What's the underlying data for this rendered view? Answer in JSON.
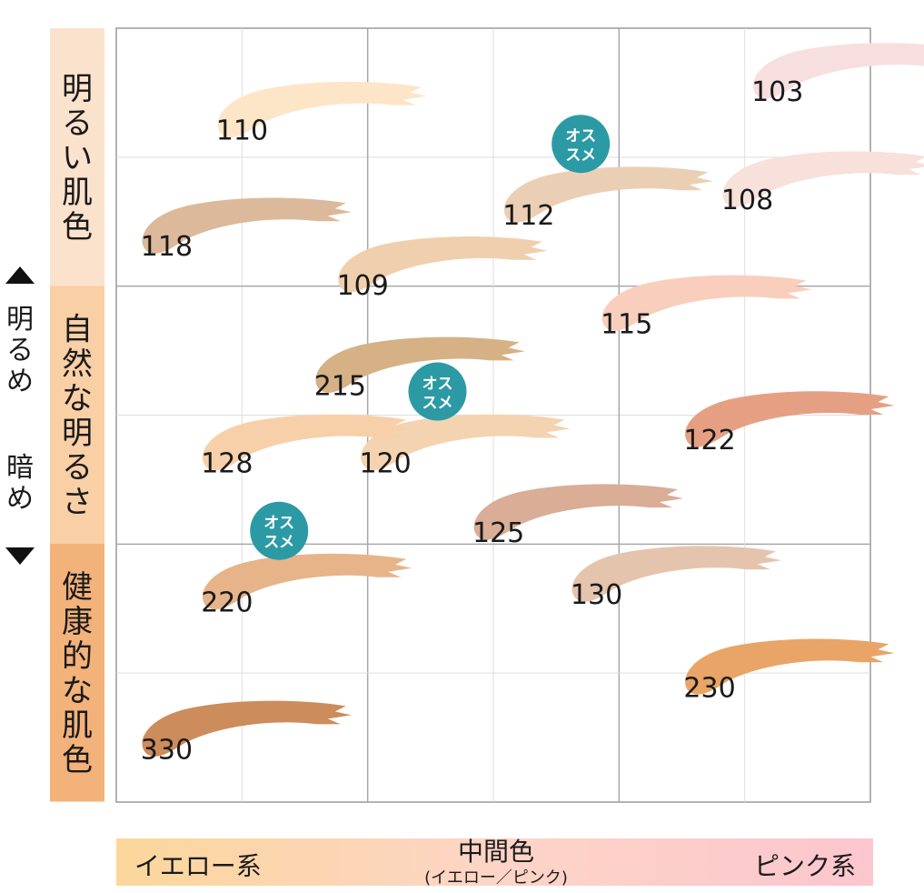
{
  "chart_data": {
    "type": "scatter",
    "title": "",
    "x_axis": {
      "labels": [
        "イエロー系",
        "中間色",
        "ピンク系"
      ],
      "middle_sub": "(イエロー／ピンク)",
      "gradient_colors": [
        "#fbd79b",
        "#fdd5c6",
        "#fcc6cf"
      ]
    },
    "y_axis": {
      "up_label": "明るめ",
      "down_label": "暗め",
      "bands": [
        {
          "label": "明るい肌色",
          "color": "#fbe2cd"
        },
        {
          "label": "自然な明るさ",
          "color": "#f9cfa5"
        },
        {
          "label": "健康的な肌色",
          "color": "#f2b27a"
        }
      ]
    },
    "recommend_label": [
      "オス",
      "スメ"
    ],
    "recommend_color": "#2c9aa5",
    "points": [
      {
        "shade": "103",
        "x": 0.97,
        "y": 0.04,
        "color": "#f8dfdf",
        "recommended": false
      },
      {
        "shade": "110",
        "x": 0.26,
        "y": 0.09,
        "color": "#fde5c8",
        "recommended": false
      },
      {
        "shade": "108",
        "x": 0.93,
        "y": 0.18,
        "color": "#f8e0db",
        "recommended": false
      },
      {
        "shade": "112",
        "x": 0.64,
        "y": 0.2,
        "color": "#ebcfb5",
        "recommended": true
      },
      {
        "shade": "118",
        "x": 0.16,
        "y": 0.24,
        "color": "#dcb99a",
        "recommended": false
      },
      {
        "shade": "109",
        "x": 0.42,
        "y": 0.29,
        "color": "#efcfae",
        "recommended": false
      },
      {
        "shade": "115",
        "x": 0.77,
        "y": 0.34,
        "color": "#f9cebd",
        "recommended": false
      },
      {
        "shade": "215",
        "x": 0.39,
        "y": 0.42,
        "color": "#d6b186",
        "recommended": false
      },
      {
        "shade": "122",
        "x": 0.88,
        "y": 0.49,
        "color": "#e5a084",
        "recommended": false
      },
      {
        "shade": "120",
        "x": 0.45,
        "y": 0.52,
        "color": "#f4d3b0",
        "recommended": true
      },
      {
        "shade": "128",
        "x": 0.24,
        "y": 0.52,
        "color": "#f7d0a9",
        "recommended": false
      },
      {
        "shade": "125",
        "x": 0.6,
        "y": 0.61,
        "color": "#d9ad96",
        "recommended": false
      },
      {
        "shade": "130",
        "x": 0.73,
        "y": 0.69,
        "color": "#e5c4ae",
        "recommended": false
      },
      {
        "shade": "220",
        "x": 0.24,
        "y": 0.7,
        "color": "#e7b48a",
        "recommended": true
      },
      {
        "shade": "230",
        "x": 0.88,
        "y": 0.81,
        "color": "#e8a567",
        "recommended": false
      },
      {
        "shade": "330",
        "x": 0.16,
        "y": 0.89,
        "color": "#cd8c5c",
        "recommended": false
      }
    ]
  }
}
